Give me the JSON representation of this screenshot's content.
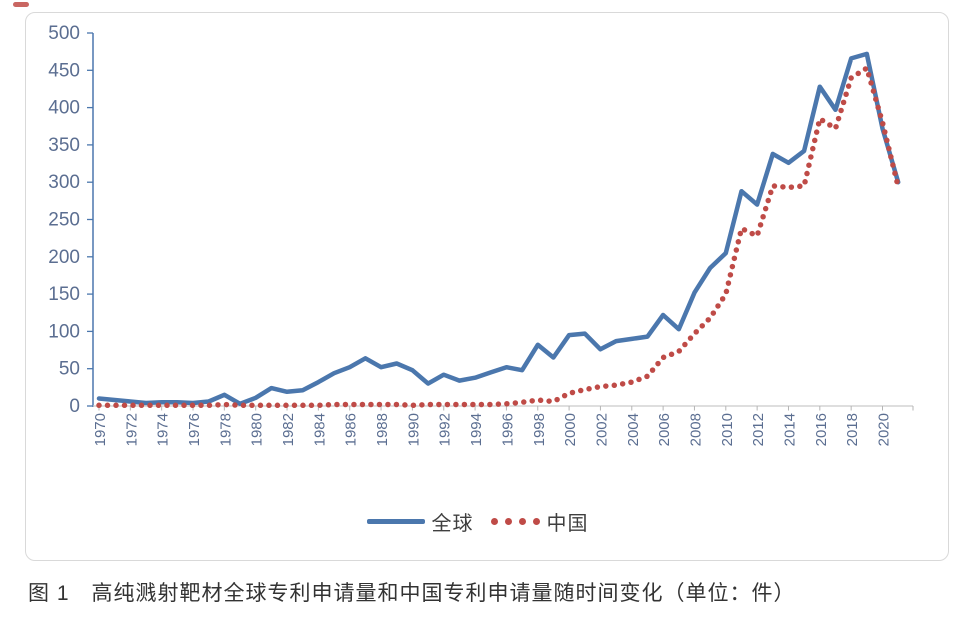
{
  "colors": {
    "global_line": "#4b77ad",
    "china_line": "#bf4b47",
    "axis_labels": "#5b6e91",
    "baseline": "#c9c9c9",
    "tick": "#b5b5b5",
    "border": "#d9d9d9",
    "caption": "#333333"
  },
  "chart_data": {
    "type": "line",
    "title": "",
    "xlabel": "",
    "ylabel": "",
    "unit": "件",
    "x": [
      1970,
      1971,
      1972,
      1973,
      1974,
      1975,
      1976,
      1977,
      1978,
      1979,
      1980,
      1981,
      1982,
      1983,
      1984,
      1985,
      1986,
      1987,
      1988,
      1989,
      1990,
      1991,
      1992,
      1993,
      1994,
      1995,
      1996,
      1997,
      1998,
      1999,
      2000,
      2001,
      2002,
      2003,
      2004,
      2005,
      2006,
      2007,
      2008,
      2009,
      2010,
      2011,
      2012,
      2013,
      2014,
      2015,
      2016,
      2017,
      2018,
      2019,
      2020,
      2021
    ],
    "x_tick_labels": [
      "1970",
      "1972",
      "1974",
      "1976",
      "1978",
      "1980",
      "1982",
      "1984",
      "1986",
      "1988",
      "1990",
      "1992",
      "1994",
      "1996",
      "1998",
      "2000",
      "2002",
      "2004",
      "2006",
      "2008",
      "2010",
      "2012",
      "2014",
      "2016",
      "2018",
      "2020"
    ],
    "series": [
      {
        "name": "全球",
        "style": "solid",
        "color": "#4b77ad",
        "values": [
          10,
          8,
          6,
          4,
          5,
          5,
          4,
          6,
          15,
          3,
          11,
          24,
          19,
          21,
          32,
          44,
          52,
          64,
          52,
          57,
          48,
          30,
          42,
          34,
          38,
          45,
          52,
          48,
          82,
          65,
          95,
          97,
          76,
          87,
          90,
          93,
          122,
          103,
          152,
          185,
          205,
          288,
          270,
          338,
          326,
          342,
          428,
          397,
          466,
          472,
          372,
          300
        ]
      },
      {
        "name": "中国",
        "style": "dotted",
        "color": "#bf4b47",
        "values": [
          1,
          1,
          1,
          1,
          1,
          1,
          1,
          1,
          2,
          1,
          1,
          1,
          1,
          1,
          1,
          2,
          2,
          2,
          2,
          2,
          1,
          2,
          2,
          2,
          2,
          2,
          3,
          5,
          8,
          6,
          17,
          22,
          26,
          28,
          32,
          40,
          65,
          73,
          97,
          118,
          150,
          238,
          228,
          295,
          293,
          295,
          385,
          372,
          440,
          453,
          380,
          294
        ]
      }
    ],
    "ylim": [
      0,
      500
    ],
    "ytick_step": 50,
    "grid": false,
    "legend_position": "bottom"
  },
  "caption": {
    "text": "图 1　高纯溅射靶材全球专利申请量和中国专利申请量随时间变化（单位：件）"
  }
}
